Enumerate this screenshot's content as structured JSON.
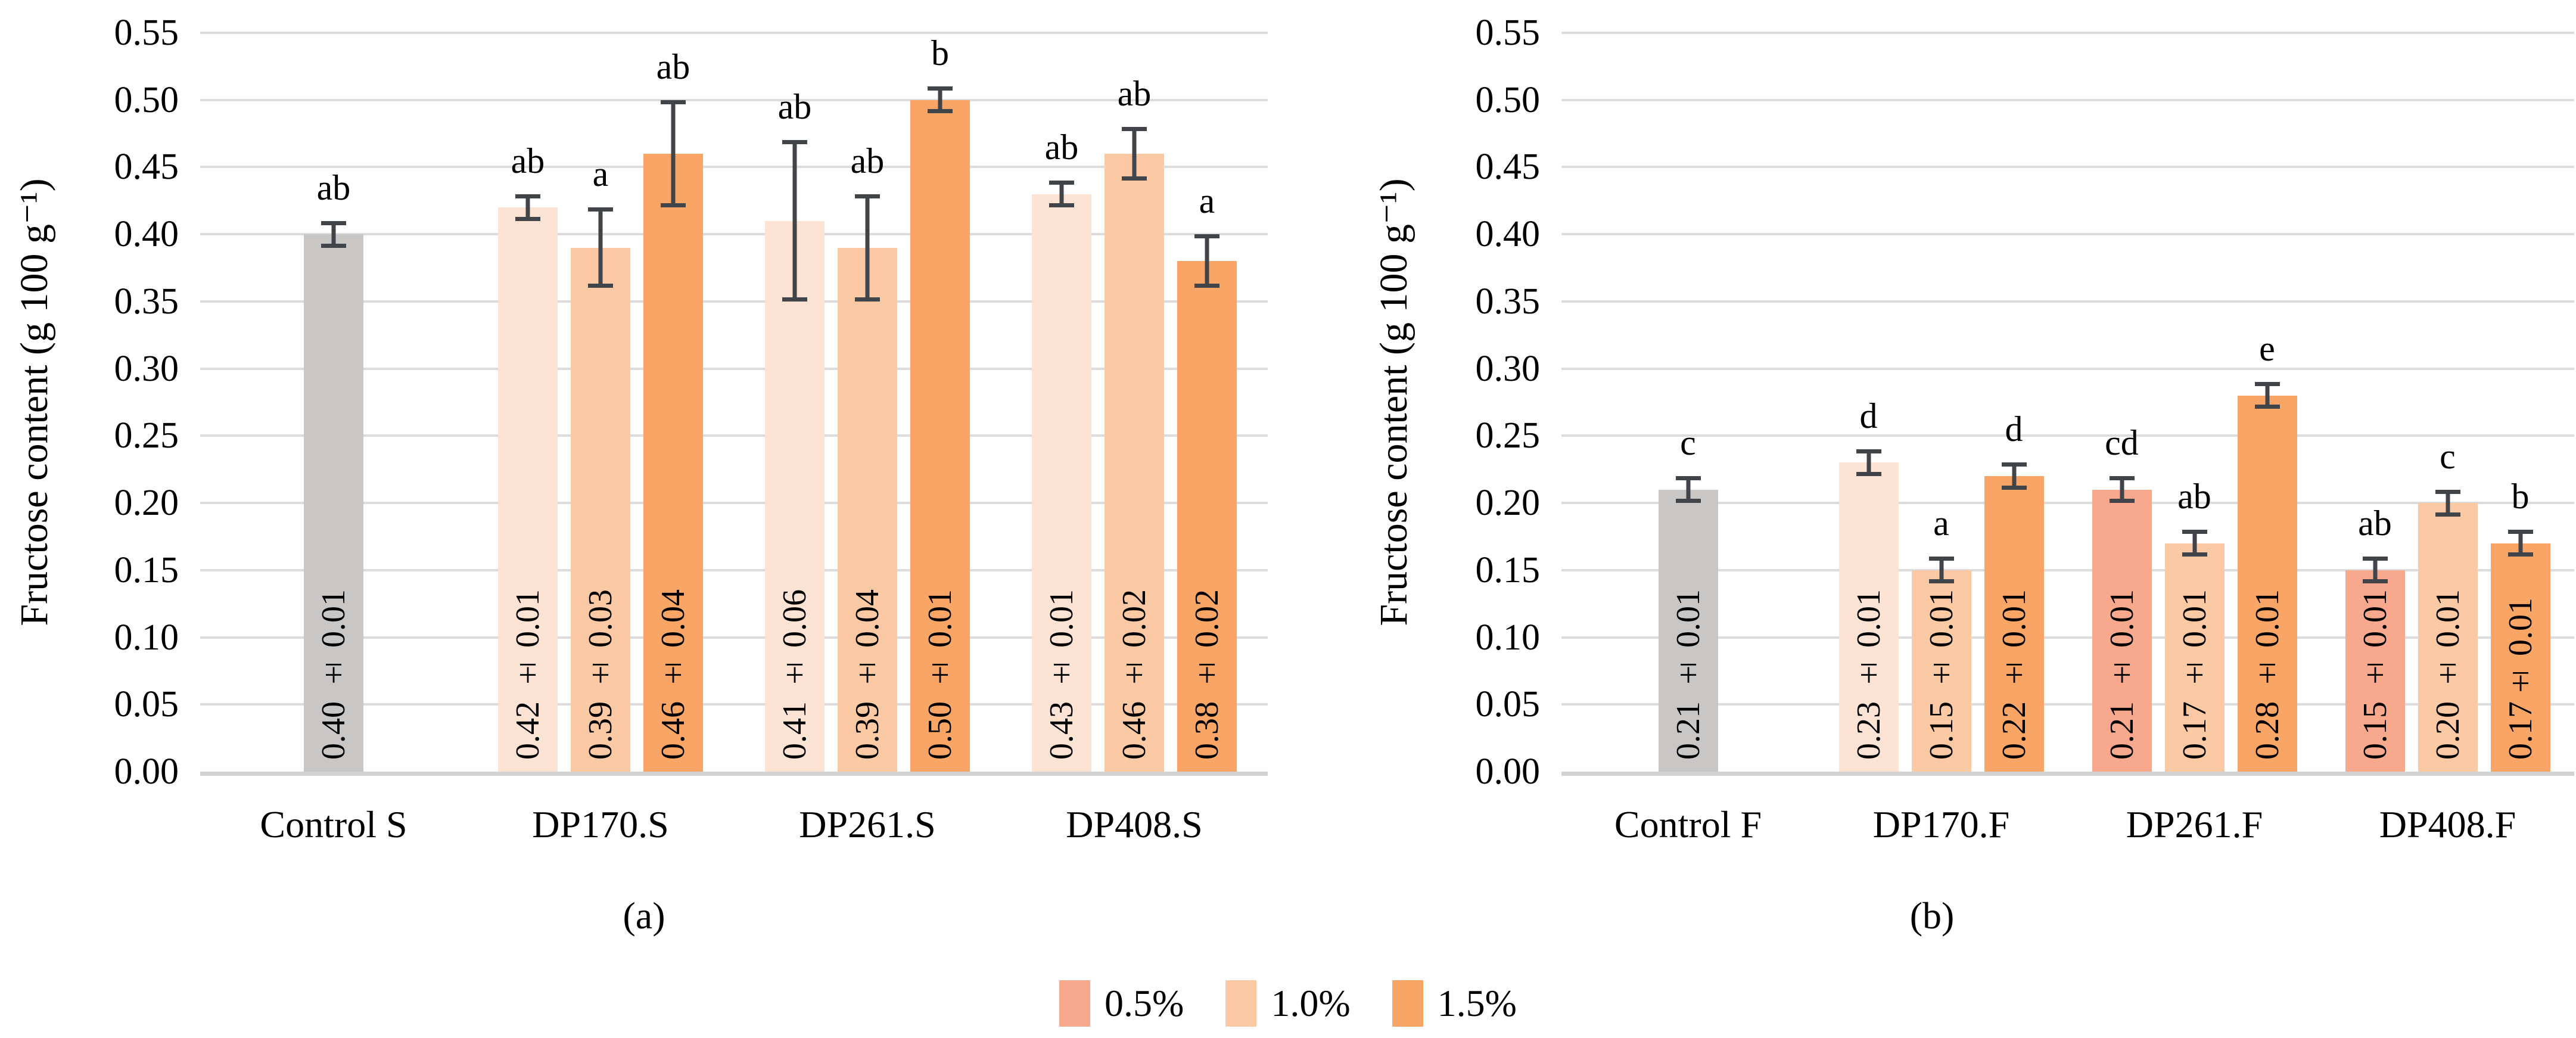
{
  "figure": {
    "background": "#FFFFFF",
    "colors": {
      "control": "#C9C6C6",
      "light": "#FCE3D4",
      "medium": "#FBC9A3",
      "dark": "#F8A566",
      "salmon": "#F8A98D",
      "error_bar": "#414549",
      "gridline": "#DCDCDC",
      "baseline": "#D2D2D2",
      "text": "#000000"
    },
    "legend": {
      "position": "bottom-center",
      "items": [
        {
          "label": "0.5%",
          "color": "#F8A98D"
        },
        {
          "label": "1.0%",
          "color": "#FBC9A3"
        },
        {
          "label": "1.5%",
          "color": "#F8A566"
        }
      ]
    }
  },
  "chart_data": [
    {
      "type": "bar",
      "panel": "a",
      "caption": "(a)",
      "ylabel": "Fructose content (g 100 g⁻¹)",
      "ylim": [
        0,
        0.55
      ],
      "ytick_step": 0.05,
      "yticks": [
        "0.00",
        "0.05",
        "0.10",
        "0.15",
        "0.20",
        "0.25",
        "0.30",
        "0.35",
        "0.40",
        "0.45",
        "0.50",
        "0.55"
      ],
      "grid": true,
      "categories": [
        "Control S",
        "DP170.S",
        "DP261.S",
        "DP408.S"
      ],
      "groups": [
        {
          "category": "Control S",
          "bars": [
            {
              "series": "control",
              "value": 0.4,
              "error": 0.01,
              "label": "0.40 ± 0.01",
              "letter": "ab",
              "color_key": "control"
            }
          ]
        },
        {
          "category": "DP170.S",
          "bars": [
            {
              "series": "0.5%",
              "value": 0.42,
              "error": 0.01,
              "label": "0.42 ± 0.01",
              "letter": "ab",
              "color_key": "light"
            },
            {
              "series": "1.0%",
              "value": 0.39,
              "error": 0.03,
              "label": "0.39 ± 0.03",
              "letter": "a",
              "color_key": "medium"
            },
            {
              "series": "1.5%",
              "value": 0.46,
              "error": 0.04,
              "label": "0.46 ± 0.04",
              "letter": "ab",
              "color_key": "dark"
            }
          ]
        },
        {
          "category": "DP261.S",
          "bars": [
            {
              "series": "0.5%",
              "value": 0.41,
              "error": 0.06,
              "label": "0.41 ± 0.06",
              "letter": "ab",
              "color_key": "light"
            },
            {
              "series": "1.0%",
              "value": 0.39,
              "error": 0.04,
              "label": "0.39 ± 0.04",
              "letter": "ab",
              "color_key": "medium"
            },
            {
              "series": "1.5%",
              "value": 0.5,
              "error": 0.01,
              "label": "0.50 ± 0.01",
              "letter": "b",
              "color_key": "dark"
            }
          ]
        },
        {
          "category": "DP408.S",
          "bars": [
            {
              "series": "0.5%",
              "value": 0.43,
              "error": 0.01,
              "label": "0.43 ± 0.01",
              "letter": "ab",
              "color_key": "light"
            },
            {
              "series": "1.0%",
              "value": 0.46,
              "error": 0.02,
              "label": "0.46 ± 0.02",
              "letter": "ab",
              "color_key": "medium"
            },
            {
              "series": "1.5%",
              "value": 0.38,
              "error": 0.02,
              "label": "0.38 ± 0.02",
              "letter": "a",
              "color_key": "dark"
            }
          ]
        }
      ]
    },
    {
      "type": "bar",
      "panel": "b",
      "caption": "(b)",
      "ylabel": "Fructose content (g 100 g⁻¹)",
      "ylim": [
        0,
        0.55
      ],
      "ytick_step": 0.05,
      "yticks": [
        "0.00",
        "0.05",
        "0.10",
        "0.15",
        "0.20",
        "0.25",
        "0.30",
        "0.35",
        "0.40",
        "0.45",
        "0.50",
        "0.55"
      ],
      "grid": true,
      "categories": [
        "Control F",
        "DP170.F",
        "DP261.F",
        "DP408.F"
      ],
      "groups": [
        {
          "category": "Control F",
          "bars": [
            {
              "series": "control",
              "value": 0.21,
              "error": 0.01,
              "label": "0.21 ± 0.01",
              "letter": "c",
              "color_key": "control"
            }
          ]
        },
        {
          "category": "DP170.F",
          "bars": [
            {
              "series": "0.5%",
              "value": 0.23,
              "error": 0.01,
              "label": "0.23 ± 0.01",
              "letter": "d",
              "color_key": "light"
            },
            {
              "series": "1.0%",
              "value": 0.15,
              "error": 0.01,
              "label": "0.15 ± 0.01",
              "letter": "a",
              "color_key": "medium"
            },
            {
              "series": "1.5%",
              "value": 0.22,
              "error": 0.01,
              "label": "0.22 ± 0.01",
              "letter": "d",
              "color_key": "dark"
            }
          ]
        },
        {
          "category": "DP261.F",
          "bars": [
            {
              "series": "0.5%",
              "value": 0.21,
              "error": 0.01,
              "label": "0.21 ± 0.01",
              "letter": "cd",
              "color_key": "salmon"
            },
            {
              "series": "1.0%",
              "value": 0.17,
              "error": 0.01,
              "label": "0.17 ± 0.01",
              "letter": "ab",
              "color_key": "medium"
            },
            {
              "series": "1.5%",
              "value": 0.28,
              "error": 0.01,
              "label": "0.28 ± 0.01",
              "letter": "e",
              "color_key": "dark"
            }
          ]
        },
        {
          "category": "DP408.F",
          "bars": [
            {
              "series": "0.5%",
              "value": 0.15,
              "error": 0.01,
              "label": "0.15 ± 0.01",
              "letter": "ab",
              "color_key": "salmon"
            },
            {
              "series": "1.0%",
              "value": 0.2,
              "error": 0.01,
              "label": "0.20 ± 0.01",
              "letter": "c",
              "color_key": "medium"
            },
            {
              "series": "1.5%",
              "value": 0.17,
              "error": 0.01,
              "label": "0.17± 0.01",
              "letter": "b",
              "color_key": "dark"
            }
          ]
        }
      ]
    }
  ]
}
